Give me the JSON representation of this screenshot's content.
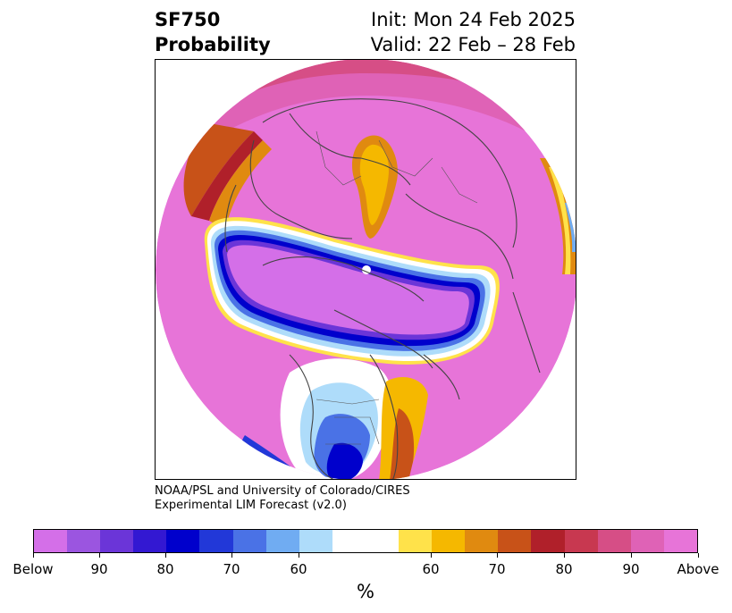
{
  "title": {
    "left_line1": "SF750",
    "left_line2": "Probability",
    "right_line1": "Init: Mon 24 Feb 2025",
    "right_line2": "Valid: 22 Feb – 28 Feb"
  },
  "credit": {
    "line1": "NOAA/PSL and University of Colorado/CIRES",
    "line2": "Experimental LIM Forecast (v2.0)"
  },
  "colorbar": {
    "unit": "%",
    "colors": [
      "#d46fe8",
      "#9b55e0",
      "#6b35d8",
      "#3318d2",
      "#0000cc",
      "#2238d8",
      "#4a72e6",
      "#70acf2",
      "#aedcfa",
      "#ffffff",
      "#ffe24a",
      "#f5b800",
      "#e08a10",
      "#c85218",
      "#b0202a",
      "#c83850",
      "#d64e86",
      "#df62b6",
      "#e774d8"
    ],
    "tick_labels": [
      "Below",
      "90",
      "80",
      "70",
      "60",
      "60",
      "70",
      "80",
      "90",
      "Above"
    ]
  },
  "map": {
    "projection": "north-polar-stereographic",
    "description_colors": {
      "above_strong": "#e774d8",
      "below_strong": "#d46fe8"
    }
  }
}
